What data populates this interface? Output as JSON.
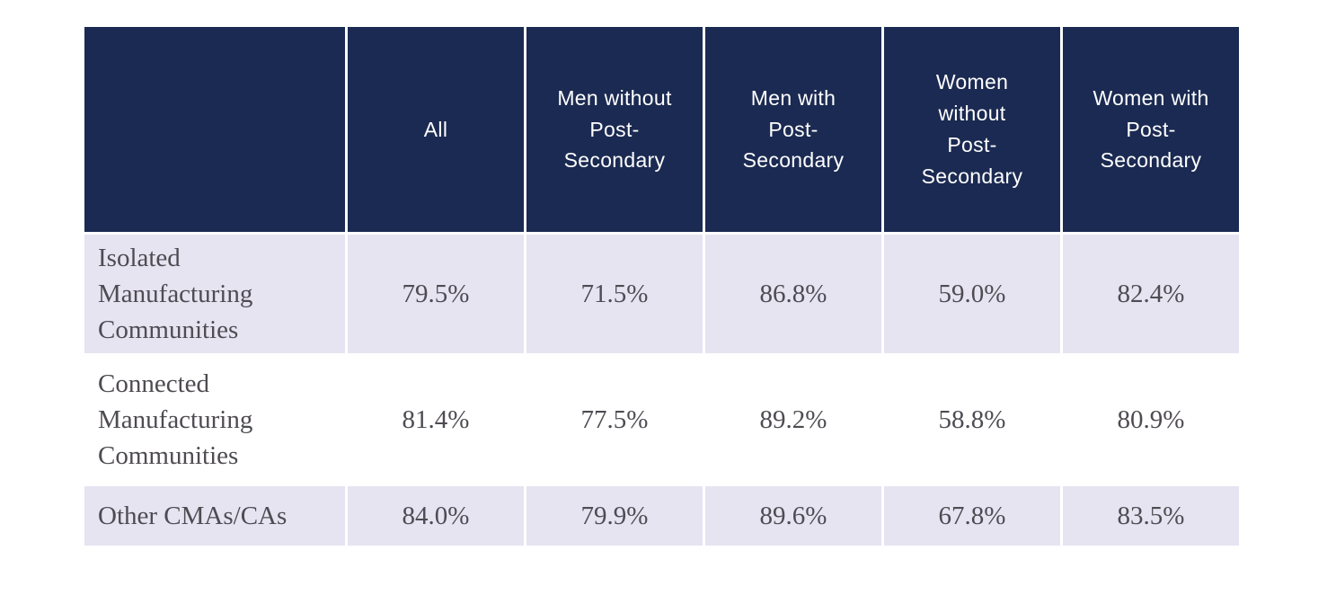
{
  "colors": {
    "page_bg": "#ffffff",
    "header_bg": "#1b2a52",
    "header_text": "#ffffff",
    "row_bg": "#ffffff",
    "row_alt_bg": "#e6e4f1",
    "body_text": "#4e4b52"
  },
  "table": {
    "header": [
      {
        "label": ""
      },
      {
        "label": "All"
      },
      {
        "label": "Men without\nPost-\nSecondary"
      },
      {
        "label": "Men with\nPost-\nSecondary"
      },
      {
        "label": "Women\nwithout\nPost-\nSecondary"
      },
      {
        "label": "Women with\nPost-\nSecondary"
      }
    ],
    "rows": [
      {
        "label": "Isolated\nManufacturing\nCommunities",
        "values": [
          "79.5%",
          "71.5%",
          "86.8%",
          "59.0%",
          "82.4%"
        ],
        "striped": true
      },
      {
        "label": "Connected\nManufacturing\nCommunities",
        "values": [
          "81.4%",
          "77.5%",
          "89.2%",
          "58.8%",
          "80.9%"
        ],
        "striped": false
      },
      {
        "label": "Other CMAs/CAs",
        "values": [
          "84.0%",
          "79.9%",
          "89.6%",
          "67.8%",
          "83.5%"
        ],
        "striped": true
      }
    ]
  },
  "chart_data": {
    "type": "table",
    "columns": [
      "",
      "All",
      "Men without Post-Secondary",
      "Men with Post-Secondary",
      "Women without Post-Secondary",
      "Women with Post-Secondary"
    ],
    "rows": [
      [
        "Isolated Manufacturing Communities",
        "79.5%",
        "71.5%",
        "86.8%",
        "59.0%",
        "82.4%"
      ],
      [
        "Connected Manufacturing Communities",
        "81.4%",
        "77.5%",
        "89.2%",
        "58.8%",
        "80.9%"
      ],
      [
        "Other CMAs/CAs",
        "84.0%",
        "79.9%",
        "89.6%",
        "67.8%",
        "83.5%"
      ]
    ],
    "categories": [
      "Isolated Manufacturing Communities",
      "Connected Manufacturing Communities",
      "Other CMAs/CAs"
    ],
    "series": [
      {
        "name": "All",
        "values": [
          79.5,
          81.4,
          84.0
        ]
      },
      {
        "name": "Men without Post-Secondary",
        "values": [
          71.5,
          77.5,
          79.9
        ]
      },
      {
        "name": "Men with Post-Secondary",
        "values": [
          86.8,
          89.2,
          89.6
        ]
      },
      {
        "name": "Women without Post-Secondary",
        "values": [
          59.0,
          58.8,
          67.8
        ]
      },
      {
        "name": "Women with Post-Secondary",
        "values": [
          82.4,
          80.9,
          83.5
        ]
      }
    ],
    "unit": "%"
  }
}
